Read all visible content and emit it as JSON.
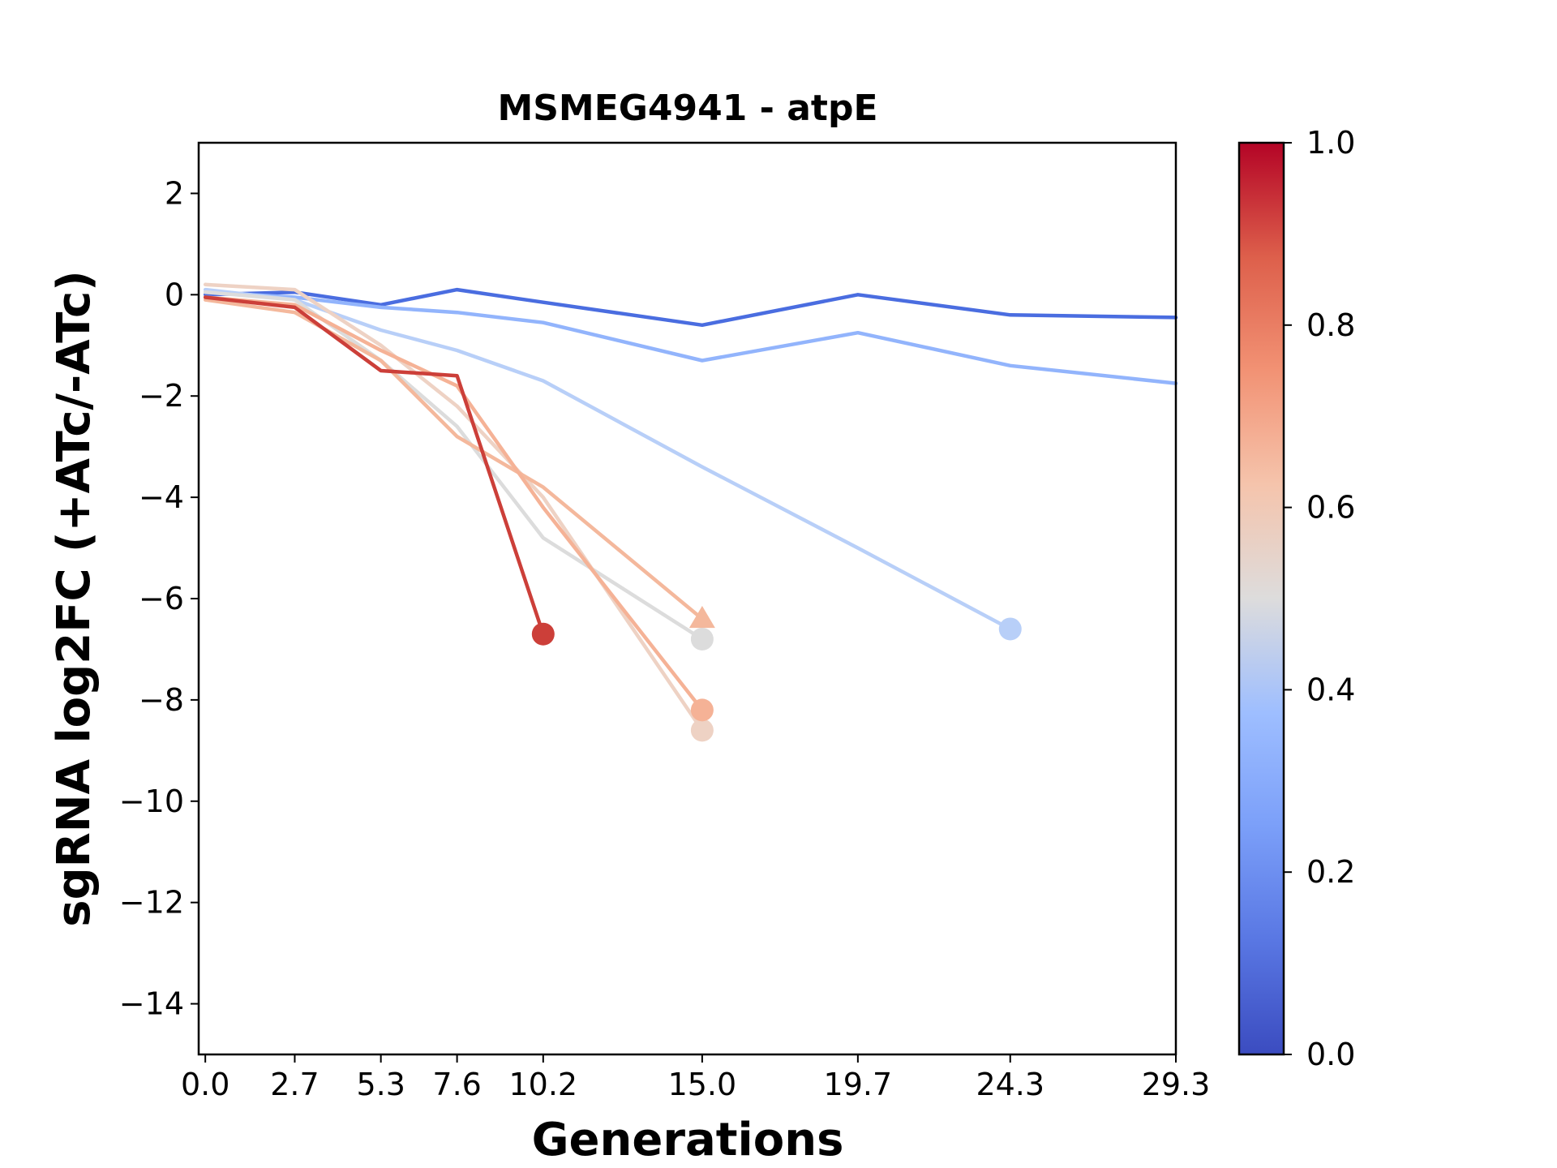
{
  "chart_data": {
    "type": "line",
    "title": "MSMEG4941 - atpE",
    "xlabel": "Generations",
    "ylabel": "sgRNA log2FC (+ATc/-ATc)",
    "xlim": [
      -0.2,
      29.3
    ],
    "ylim": [
      -15,
      3
    ],
    "xticks": [
      0.0,
      2.7,
      5.3,
      7.6,
      10.2,
      15.0,
      19.7,
      24.3,
      29.3
    ],
    "xtick_labels": [
      "0.0",
      "2.7",
      "5.3",
      "7.6",
      "10.2",
      "15.0",
      "19.7",
      "24.3",
      "29.3"
    ],
    "yticks": [
      2,
      0,
      -2,
      -4,
      -6,
      -8,
      -10,
      -12,
      -14
    ],
    "ytick_labels": [
      "2",
      "0",
      "−2",
      "−4",
      "−6",
      "−8",
      "−10",
      "−12",
      "−14"
    ],
    "grid": false,
    "colorbar": {
      "colormap": "coolwarm",
      "range": [
        0.0,
        1.0
      ],
      "ticks": [
        0.0,
        0.2,
        0.4,
        0.6,
        0.8,
        1.0
      ],
      "tick_labels": [
        "0.0",
        "0.2",
        "0.4",
        "0.6",
        "0.8",
        "1.0"
      ]
    },
    "series": [
      {
        "color_value": 0.08,
        "color": "#4a6de0",
        "x": [
          0.0,
          2.7,
          5.3,
          7.6,
          10.2,
          15.0,
          19.7,
          24.3,
          29.3
        ],
        "y": [
          0.0,
          0.05,
          -0.2,
          0.1,
          -0.15,
          -0.6,
          0.0,
          -0.4,
          -0.45
        ],
        "end_marker": "none"
      },
      {
        "color_value": 0.25,
        "color": "#92b4fc",
        "x": [
          0.0,
          2.7,
          5.3,
          7.6,
          10.2,
          15.0,
          19.7,
          24.3,
          29.3
        ],
        "y": [
          0.05,
          -0.05,
          -0.25,
          -0.35,
          -0.55,
          -1.3,
          -0.75,
          -1.4,
          -1.75
        ],
        "end_marker": "none"
      },
      {
        "color_value": 0.38,
        "color": "#b8cff8",
        "x": [
          0.0,
          2.7,
          5.3,
          7.6,
          10.2,
          15.0,
          19.7,
          24.3
        ],
        "y": [
          0.1,
          -0.1,
          -0.7,
          -1.1,
          -1.7,
          -3.4,
          -5.0,
          -6.6
        ],
        "end_marker": "circle"
      },
      {
        "color_value": 0.5,
        "color": "#dcdcdc",
        "x": [
          0.0,
          2.7,
          5.3,
          7.6,
          10.2,
          15.0
        ],
        "y": [
          0.05,
          -0.1,
          -1.3,
          -2.6,
          -4.8,
          -6.8
        ],
        "end_marker": "circle"
      },
      {
        "color_value": 0.58,
        "color": "#eed2c4",
        "x": [
          0.0,
          2.7,
          5.3,
          7.6,
          10.2,
          15.0
        ],
        "y": [
          0.2,
          0.1,
          -1.0,
          -2.2,
          -4.0,
          -8.6
        ],
        "end_marker": "circle"
      },
      {
        "color_value": 0.7,
        "color": "#f4b89c",
        "x": [
          0.0,
          2.7,
          5.3,
          7.6,
          10.2,
          15.0
        ],
        "y": [
          -0.1,
          -0.35,
          -1.3,
          -2.8,
          -3.8,
          -6.4
        ],
        "end_marker": "triangle"
      },
      {
        "color_value": 0.72,
        "color": "#f5b296",
        "x": [
          0.0,
          2.7,
          5.3,
          7.6,
          10.2,
          15.0
        ],
        "y": [
          -0.05,
          -0.2,
          -1.1,
          -1.8,
          -4.2,
          -8.2
        ],
        "end_marker": "circle"
      },
      {
        "color_value": 0.92,
        "color": "#cc3f39",
        "x": [
          0.0,
          2.7,
          5.3,
          7.6,
          10.2
        ],
        "y": [
          -0.05,
          -0.25,
          -1.5,
          -1.6,
          -6.7
        ],
        "end_marker": "circle"
      }
    ]
  }
}
